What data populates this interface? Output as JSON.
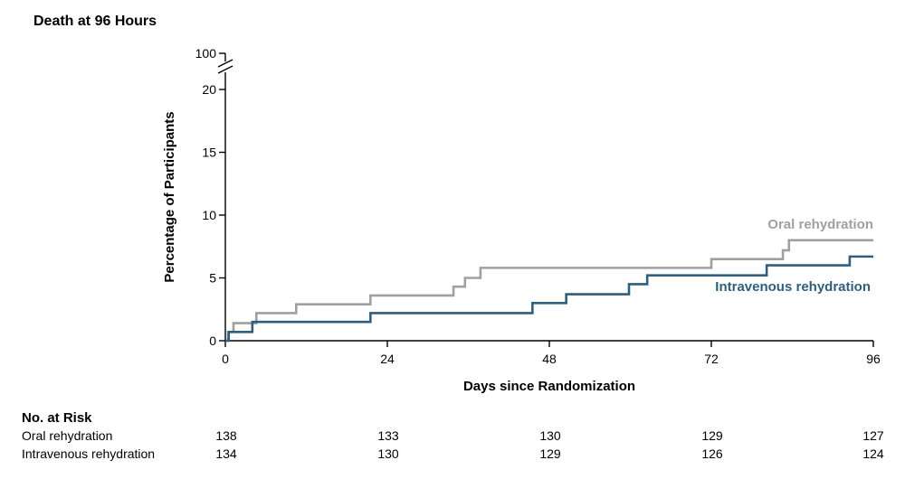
{
  "chart_data": {
    "type": "line",
    "step": true,
    "title": "Death at 96 Hours",
    "xlabel": "Days since Randomization",
    "ylabel": "Percentage of Participants",
    "xlim": [
      0,
      96
    ],
    "ylim": [
      0,
      20
    ],
    "x_ticks": [
      0,
      24,
      48,
      72,
      96
    ],
    "y_ticks": [
      0,
      5,
      10,
      15,
      20
    ],
    "y_break_top_tick": 100,
    "grid": false,
    "colors": {
      "oral": "#a0a0a0",
      "iv": "#2f5f7d"
    },
    "series": [
      {
        "name": "Oral rehydration",
        "color": "#a0a0a0",
        "points": [
          [
            0,
            0
          ],
          [
            0.4,
            0.7
          ],
          [
            1.2,
            1.4
          ],
          [
            4.6,
            2.2
          ],
          [
            10.5,
            2.9
          ],
          [
            21.5,
            3.6
          ],
          [
            33.8,
            4.3
          ],
          [
            35.5,
            5.0
          ],
          [
            37.8,
            5.8
          ],
          [
            72,
            6.5
          ],
          [
            82.6,
            7.2
          ],
          [
            83.5,
            8.0
          ],
          [
            96,
            8.0
          ]
        ]
      },
      {
        "name": "Intravenous rehydration",
        "color": "#2f5f7d",
        "points": [
          [
            0,
            0
          ],
          [
            0.5,
            0.7
          ],
          [
            4,
            1.5
          ],
          [
            21.5,
            2.2
          ],
          [
            45.5,
            3.0
          ],
          [
            50.5,
            3.7
          ],
          [
            59.8,
            4.5
          ],
          [
            62.5,
            5.2
          ],
          [
            80.2,
            6.0
          ],
          [
            92.5,
            6.7
          ],
          [
            96,
            6.7
          ]
        ]
      }
    ]
  },
  "risk_table": {
    "title": "No. at Risk",
    "rows": [
      {
        "label": "Oral rehydration",
        "values": [
          "138",
          "133",
          "130",
          "129",
          "127"
        ]
      },
      {
        "label": "Intravenous rehydration",
        "values": [
          "134",
          "130",
          "129",
          "126",
          "124"
        ]
      }
    ]
  }
}
